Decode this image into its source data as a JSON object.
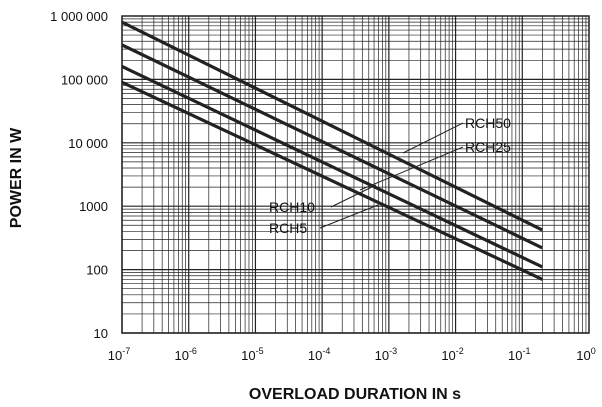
{
  "chart_data": {
    "type": "line",
    "title": "",
    "xlabel": "OVERLOAD DURATION IN s",
    "ylabel": "POWER IN W",
    "x_scale": "log",
    "y_scale": "log",
    "xlim": [
      1e-07,
      1
    ],
    "ylim": [
      10,
      1000000
    ],
    "grid": true,
    "x_ticks": [
      {
        "base": "10",
        "exp": "-7"
      },
      {
        "base": "10",
        "exp": "-6"
      },
      {
        "base": "10",
        "exp": "-5"
      },
      {
        "base": "10",
        "exp": "-4"
      },
      {
        "base": "10",
        "exp": "-3"
      },
      {
        "base": "10",
        "exp": "-2"
      },
      {
        "base": "10",
        "exp": "-1"
      },
      {
        "base": "10",
        "exp": "0"
      }
    ],
    "y_ticks": [
      "10",
      "100",
      "1000",
      "10 000",
      "100 000",
      "1 000 000"
    ],
    "series": [
      {
        "name": "RCH50",
        "x": [
          1e-07,
          0.2
        ],
        "y": [
          800000,
          420
        ]
      },
      {
        "name": "RCH25",
        "x": [
          1e-07,
          0.2
        ],
        "y": [
          350000,
          220
        ]
      },
      {
        "name": "RCH10",
        "x": [
          1e-07,
          0.2
        ],
        "y": [
          160000,
          110
        ]
      },
      {
        "name": "RCH5",
        "x": [
          1e-07,
          0.2
        ],
        "y": [
          90000,
          70
        ]
      }
    ],
    "annotations": [
      "RCH50",
      "RCH25",
      "RCH10",
      "RCH5"
    ]
  },
  "colors": {
    "line": "#222222",
    "grid": "#222222",
    "background": "#ffffff"
  }
}
